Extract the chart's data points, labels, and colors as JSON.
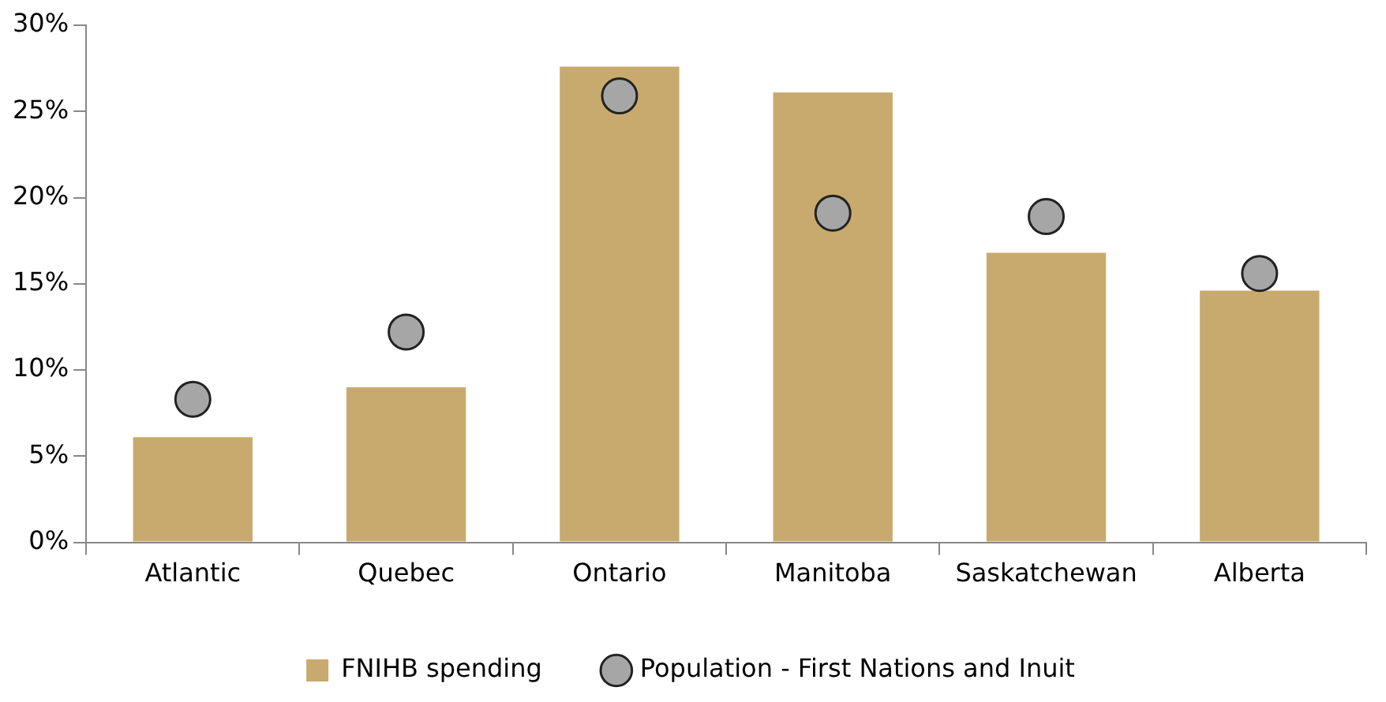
{
  "chart_data": {
    "type": "bar",
    "categories": [
      "Atlantic",
      "Quebec",
      "Ontario",
      "Manitoba",
      "Saskatchewan",
      "Alberta"
    ],
    "series": [
      {
        "name": "FNIHB spending",
        "color": "#c8aa6e",
        "values": [
          6.1,
          9.0,
          27.6,
          26.1,
          16.8,
          14.6
        ]
      },
      {
        "name": "Population - First Nations and Inuit",
        "type": "scatter",
        "color": "#a6a6a6",
        "x": [
          "Atlantic",
          "Quebec",
          "Ontario",
          "Manitoba",
          "Saskatchewan",
          "Alberta"
        ],
        "values": [
          8.3,
          12.2,
          25.9,
          19.1,
          18.9,
          15.6
        ]
      }
    ],
    "ylim": [
      0,
      30
    ],
    "yticks": [
      {
        "value": 0,
        "label": "0%"
      },
      {
        "value": 5,
        "label": "5%"
      },
      {
        "value": 10,
        "label": "10%"
      },
      {
        "value": 15,
        "label": "15%"
      },
      {
        "value": 20,
        "label": "20%"
      },
      {
        "value": 25,
        "label": "25%"
      },
      {
        "value": 30,
        "label": "30%"
      }
    ],
    "grid": false,
    "legend": "bottom",
    "marker": "circle"
  }
}
